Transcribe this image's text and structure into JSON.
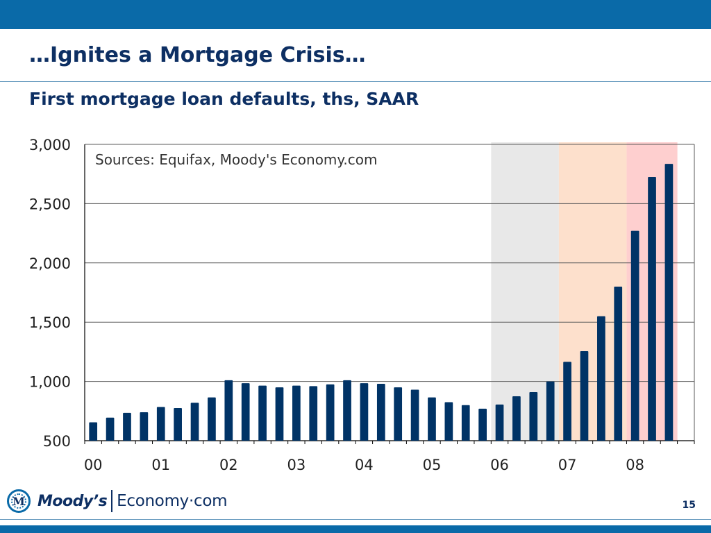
{
  "slide": {
    "title": "…Ignites a Mortgage Crisis…",
    "page_number": "15"
  },
  "logo": {
    "badge_letter": "M",
    "brand": "Moody’s",
    "product": "Economy·com"
  },
  "colors": {
    "bars": "#003366",
    "top_bar": "#0a6aa8",
    "title_text": "#0d2f63",
    "shade_2006": "#e8e8e8",
    "shade_2007": "#fde0cc",
    "shade_2008": "#fecfcf",
    "gridline": "#555555"
  },
  "chart_data": {
    "type": "bar",
    "title": "First mortgage loan defaults, ths, SAAR",
    "annotation": "Sources: Equifax, Moody's Economy.com",
    "ylim": [
      500,
      3000
    ],
    "yticks": [
      500,
      1000,
      1500,
      2000,
      2500,
      3000
    ],
    "ytick_labels": [
      "500",
      "1,000",
      "1,500",
      "2,000",
      "2,500",
      "3,000"
    ],
    "xtick_labels": [
      "00",
      "01",
      "02",
      "03",
      "04",
      "05",
      "06",
      "07",
      "08"
    ],
    "grid": true,
    "frequency": "quarterly",
    "start": "2000 Q1",
    "values": [
      655,
      695,
      735,
      740,
      785,
      775,
      820,
      865,
      1010,
      985,
      965,
      950,
      965,
      960,
      975,
      1010,
      985,
      980,
      950,
      930,
      865,
      825,
      800,
      770,
      805,
      875,
      910,
      1000,
      1165,
      1255,
      1550,
      1800,
      2270,
      2725,
      2835
    ],
    "shaded_periods": [
      {
        "from": "2006 Q1",
        "to": "2006 Q4",
        "color": "#e8e8e8"
      },
      {
        "from": "2007 Q1",
        "to": "2007 Q4",
        "color": "#fde0cc"
      },
      {
        "from": "2008 Q1",
        "to": "2008 Q3",
        "color": "#fecfcf"
      }
    ]
  }
}
